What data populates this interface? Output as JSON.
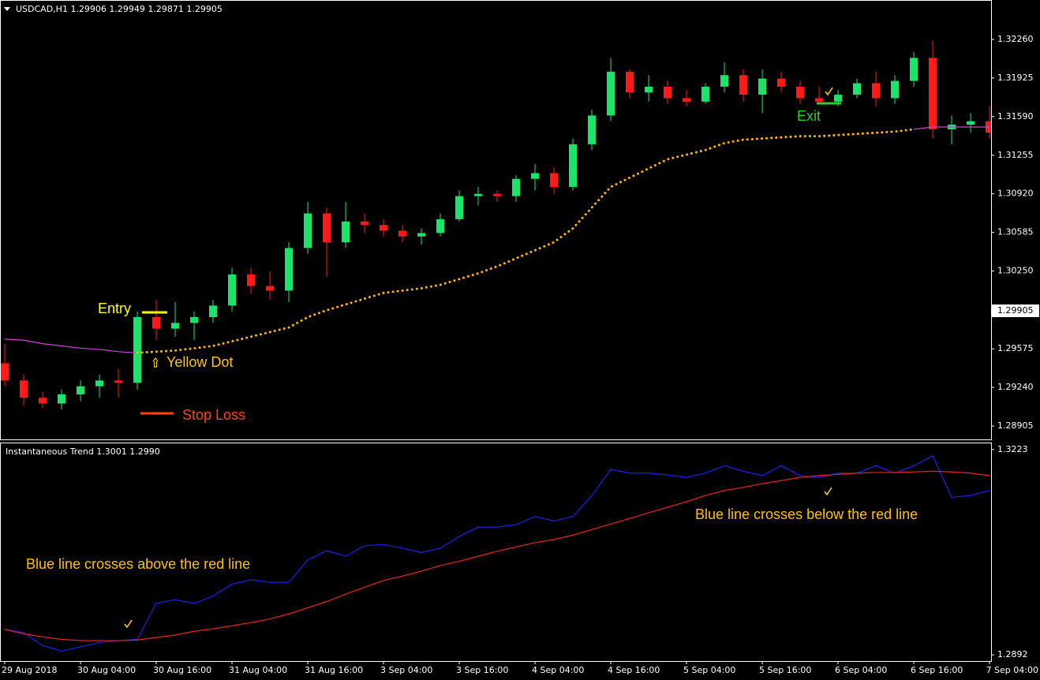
{
  "chart_data": [
    {
      "type": "candlestick",
      "title": "USDCAD,H1  1.29906 1.29949 1.29871 1.29905",
      "categories": [
        "29 Aug 2018",
        null,
        null,
        null,
        "30 Aug 04:00",
        null,
        null,
        null,
        "30 Aug 16:00",
        null,
        null,
        null,
        "31 Aug 04:00",
        null,
        null,
        null,
        "31 Aug 16:00",
        null,
        null,
        null,
        "3 Sep 04:00",
        null,
        null,
        null,
        "3 Sep 16:00",
        null,
        null,
        null,
        "4 Sep 04:00",
        null,
        null,
        null,
        "4 Sep 16:00",
        null,
        null,
        null,
        "5 Sep 04:00",
        null,
        null,
        null,
        "5 Sep 16:00",
        null,
        null,
        null,
        "6 Sep 04:00",
        null,
        null,
        null,
        "6 Sep 16:00",
        null,
        null,
        null,
        "7 Sep 04:00"
      ],
      "open": [
        1.2945,
        1.293,
        1.2915,
        1.291,
        1.2918,
        1.2925,
        1.293,
        1.2928,
        1.2985,
        1.2975,
        1.298,
        1.2985,
        1.2995,
        1.3022,
        1.3012,
        1.3008,
        1.3045,
        1.3075,
        1.305,
        1.3068,
        1.3065,
        1.306,
        1.3055,
        1.3058,
        1.307,
        1.309,
        1.3092,
        1.309,
        1.3105,
        1.311,
        1.3098,
        1.3135,
        1.316,
        1.3198,
        1.318,
        1.3185,
        1.3175,
        1.3172,
        1.3185,
        1.3195,
        1.3178,
        1.3192,
        1.3185,
        1.3175,
        1.3172,
        1.3178,
        1.3188,
        1.3175,
        1.319,
        1.321,
        1.3148,
        1.3152,
        1.3155
      ],
      "high": [
        1.2962,
        1.2935,
        1.292,
        1.2922,
        1.293,
        1.2935,
        1.294,
        1.299,
        1.3,
        1.2998,
        1.299,
        1.3,
        1.3028,
        1.3028,
        1.3025,
        1.305,
        1.3085,
        1.308,
        1.3085,
        1.3075,
        1.307,
        1.3065,
        1.3062,
        1.3075,
        1.3095,
        1.3098,
        1.3095,
        1.3108,
        1.3118,
        1.3115,
        1.314,
        1.3165,
        1.321,
        1.32,
        1.3195,
        1.319,
        1.3182,
        1.3188,
        1.3206,
        1.32,
        1.32,
        1.3198,
        1.319,
        1.3185,
        1.3182,
        1.3192,
        1.3198,
        1.3195,
        1.3215,
        1.3225,
        1.316,
        1.3162,
        1.3168
      ],
      "low": [
        1.2925,
        1.2908,
        1.2906,
        1.2905,
        1.2912,
        1.2915,
        1.2915,
        1.2922,
        1.2965,
        1.2968,
        1.2965,
        1.298,
        1.299,
        1.3005,
        1.3,
        1.2998,
        1.304,
        1.302,
        1.3045,
        1.3058,
        1.3055,
        1.305,
        1.3048,
        1.3055,
        1.3068,
        1.3082,
        1.3085,
        1.3085,
        1.3095,
        1.3092,
        1.3095,
        1.313,
        1.3155,
        1.3175,
        1.3172,
        1.317,
        1.3168,
        1.317,
        1.318,
        1.3172,
        1.3162,
        1.318,
        1.317,
        1.317,
        1.3168,
        1.3175,
        1.3168,
        1.317,
        1.3185,
        1.314,
        1.3135,
        1.3145,
        1.314
      ],
      "close": [
        1.293,
        1.2915,
        1.291,
        1.2918,
        1.2925,
        1.293,
        1.2928,
        1.2985,
        1.2975,
        1.298,
        1.2985,
        1.2995,
        1.3022,
        1.3012,
        1.3008,
        1.3045,
        1.3075,
        1.305,
        1.3068,
        1.3065,
        1.306,
        1.3055,
        1.3058,
        1.307,
        1.309,
        1.3092,
        1.309,
        1.3105,
        1.311,
        1.3098,
        1.3135,
        1.316,
        1.3198,
        1.318,
        1.3185,
        1.3175,
        1.3172,
        1.3185,
        1.3195,
        1.3178,
        1.3192,
        1.3185,
        1.3175,
        1.3172,
        1.3178,
        1.3188,
        1.3175,
        1.319,
        1.321,
        1.3148,
        1.3152,
        1.3155,
        1.3145
      ],
      "up_color": "#1ee36a",
      "down_color": "#ff1a1a",
      "series": [
        {
          "color": "#cc44cc",
          "style": "solid",
          "values": [
            1.2966,
            1.2965,
            1.2962,
            1.296,
            1.2958,
            1.2957,
            1.2955,
            1.2954,
            null,
            null,
            null,
            null,
            null,
            null,
            null,
            null,
            null,
            null,
            null,
            null,
            null,
            null,
            null,
            null,
            null,
            null,
            null,
            null,
            null,
            null,
            null,
            null,
            null,
            null,
            null,
            null,
            null,
            null,
            null,
            null,
            null,
            null,
            null,
            null,
            null,
            null,
            null,
            null,
            1.3148,
            1.315,
            1.315,
            1.315,
            1.315
          ]
        },
        {
          "color": "#ffb300",
          "style": "dotted",
          "values": [
            null,
            null,
            null,
            null,
            null,
            null,
            null,
            1.2954,
            1.2955,
            1.2956,
            1.2958,
            1.296,
            1.2964,
            1.2968,
            1.2972,
            1.2976,
            1.2985,
            1.2991,
            1.2996,
            1.3001,
            1.3006,
            1.3008,
            1.301,
            1.3013,
            1.3018,
            1.3023,
            1.3029,
            1.3036,
            1.3043,
            1.305,
            1.3062,
            1.308,
            1.3098,
            1.3106,
            1.3114,
            1.3122,
            1.3126,
            1.313,
            1.3136,
            1.3139,
            1.314,
            1.3141,
            1.3142,
            1.3142,
            1.3143,
            1.3144,
            1.3145,
            1.3146,
            1.3148,
            null,
            null,
            null,
            null
          ]
        }
      ],
      "ylim": [
        1.28789,
        1.32602
      ],
      "yticks": [
        {
          "value": 1.3226,
          "label": "1.32260"
        },
        1.31925,
        {
          "value": 1.3159,
          "label": "1.31590"
        },
        1.31255,
        {
          "value": 1.3092,
          "label": "1.30920"
        },
        1.30585,
        {
          "value": 1.3025,
          "label": "1.30250"
        },
        1.29575,
        {
          "value": 1.2924,
          "label": "1.29240"
        },
        1.28905
      ],
      "last_price": 1.29905,
      "annotations": [
        "Entry",
        "Yellow Dot",
        "Stop Loss",
        "Exit"
      ]
    },
    {
      "type": "line",
      "title": "Instantaneous Trend 1.3001 1.2990",
      "series": [
        {
          "color": "#1c1cf0",
          "style": "solid",
          "values": [
            1.2933,
            1.2928,
            1.2907,
            1.2898,
            1.2905,
            1.2912,
            1.2915,
            1.2917,
            1.2975,
            1.2981,
            1.2975,
            1.2987,
            1.3006,
            1.3013,
            1.3009,
            1.3009,
            1.3045,
            1.306,
            1.3051,
            1.3068,
            1.307,
            1.3064,
            1.3057,
            1.3064,
            1.3083,
            1.3098,
            1.3098,
            1.3102,
            1.3115,
            1.3108,
            1.3115,
            1.3149,
            1.3191,
            1.3185,
            1.3185,
            1.3182,
            1.3178,
            1.3185,
            1.3197,
            1.3188,
            1.3181,
            1.3197,
            1.3181,
            1.3178,
            1.3185,
            1.3185,
            1.3197,
            1.3185,
            1.3197,
            1.3213,
            1.3146,
            1.3149,
            1.3157
          ]
        },
        {
          "color": "#ee2020",
          "style": "solid",
          "values": [
            1.2933,
            1.2926,
            1.2921,
            1.2917,
            1.2915,
            1.2915,
            1.2915,
            1.2916,
            1.292,
            1.2924,
            1.293,
            1.2934,
            1.2939,
            1.2944,
            1.295,
            1.2958,
            1.2968,
            1.2978,
            1.299,
            1.3001,
            1.3012,
            1.3019,
            1.3027,
            1.3036,
            1.3043,
            1.3051,
            1.3059,
            1.3066,
            1.3073,
            1.3078,
            1.3085,
            1.3094,
            1.3103,
            1.3112,
            1.3121,
            1.313,
            1.3139,
            1.3149,
            1.3157,
            1.3162,
            1.3168,
            1.3173,
            1.3178,
            1.3181,
            1.3183,
            1.3185,
            1.3186,
            1.3186,
            1.3187,
            1.3188,
            1.3187,
            1.3185,
            1.3181
          ]
        }
      ],
      "ylim": [
        1.2882,
        1.3233
      ],
      "yticks": [
        1.3223,
        1.2892
      ],
      "annotations": [
        "Blue line crosses above the red line",
        "Blue line crosses below the red line"
      ]
    }
  ]
}
